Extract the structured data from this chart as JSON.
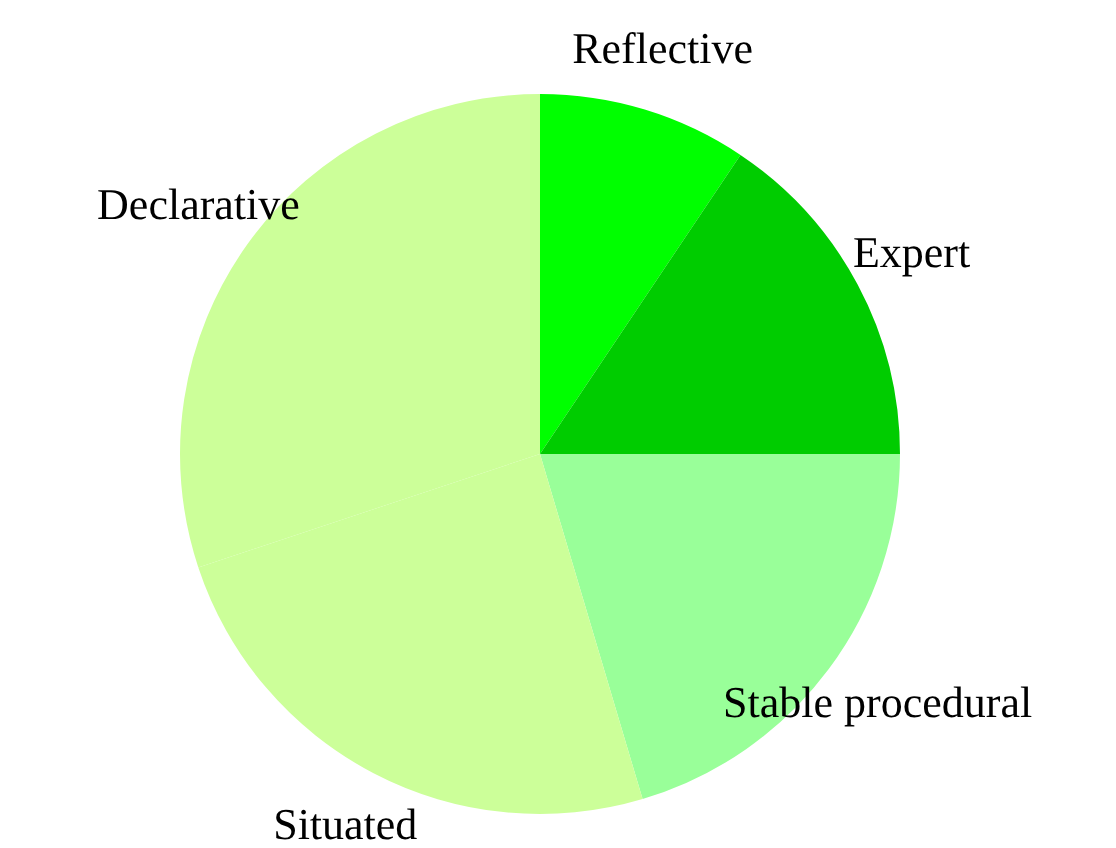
{
  "chart_data": {
    "type": "pie",
    "categories": [
      "Reflective",
      "Expert",
      "Stable procedural",
      "Situated",
      "Declarative"
    ],
    "values": [
      9.4,
      15.6,
      20.4,
      24.5,
      30.1
    ],
    "colors": [
      "#00ff00",
      "#00cc00",
      "#99ff99",
      "#ccff99",
      "#ccff99"
    ],
    "legend": false
  }
}
